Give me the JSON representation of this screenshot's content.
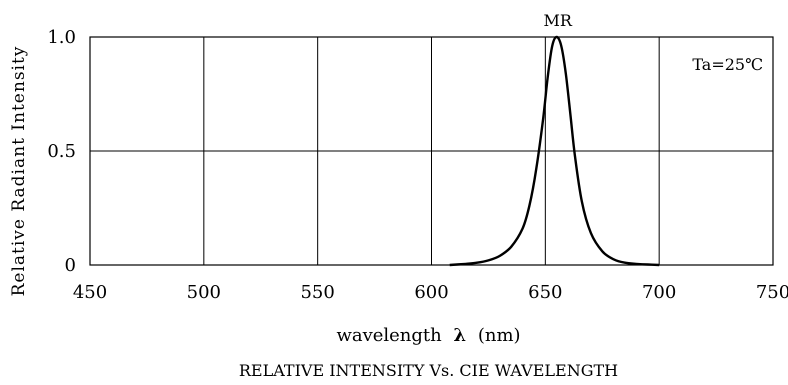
{
  "chart_data": {
    "type": "line",
    "title": "RELATIVE INTENSITY Vs. CIE WAVELENGTH",
    "xlabel": "wavelength λ (nm)",
    "xlabel_parts": {
      "prefix": "wavelength",
      "symbol": "λ",
      "suffix": "(nm)"
    },
    "ylabel": "Relative Radiant Intensity",
    "annotation": "Ta=25℃",
    "xlim": [
      450,
      750
    ],
    "ylim": [
      0,
      1.0
    ],
    "grid": true,
    "x_ticks": [
      450,
      500,
      550,
      600,
      650,
      700,
      750
    ],
    "x_tick_labels": [
      "450",
      "500",
      "550",
      "600",
      "650",
      "700",
      "750"
    ],
    "y_ticks": [
      0,
      0.5,
      1.0
    ],
    "y_tick_labels": [
      "0",
      "0.5",
      "1.0"
    ],
    "series": [
      {
        "name": "MR",
        "x": [
          608,
          615,
          620,
          625,
          630,
          635,
          640,
          643,
          646,
          649,
          651,
          653,
          655,
          657,
          659,
          661,
          663,
          666,
          670,
          675,
          680,
          685,
          690,
          695,
          700
        ],
        "y": [
          0.0,
          0.005,
          0.01,
          0.02,
          0.04,
          0.08,
          0.16,
          0.26,
          0.42,
          0.64,
          0.82,
          0.96,
          1.0,
          0.96,
          0.84,
          0.66,
          0.48,
          0.28,
          0.14,
          0.06,
          0.025,
          0.01,
          0.005,
          0.002,
          0.0
        ]
      }
    ]
  }
}
